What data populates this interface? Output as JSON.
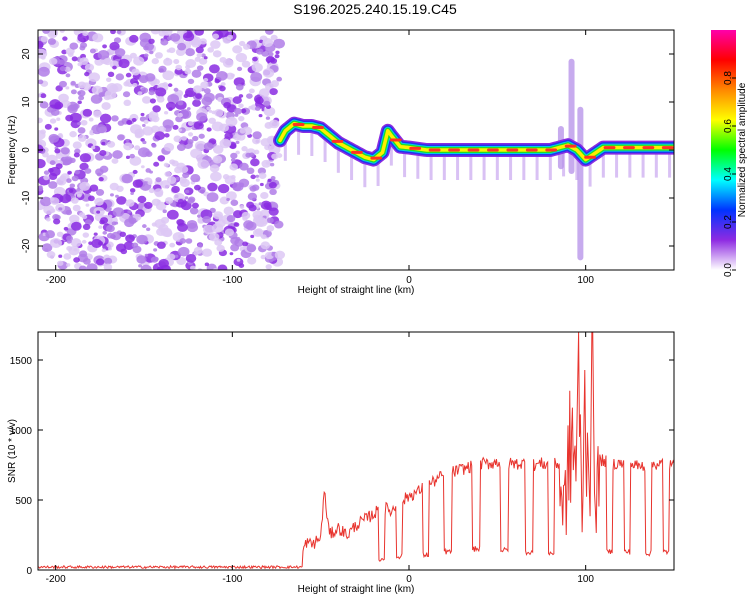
{
  "page": {
    "title": "S196.2025.240.15.19.C45"
  },
  "chart_data": [
    {
      "type": "heatmap",
      "title": "S196.2025.240.15.19.C45",
      "xlabel": "Height of straight line (km)",
      "ylabel": "Frequency (Hz)",
      "xlim": [
        -210,
        150
      ],
      "ylim": [
        -25,
        25
      ],
      "xticks": [
        -200,
        -100,
        0,
        100
      ],
      "yticks": [
        -20,
        -10,
        0,
        10,
        20
      ],
      "noise_region_x": [
        -210,
        -73
      ],
      "ridge": {
        "x": [
          -73,
          -70,
          -65,
          -60,
          -55,
          -50,
          -45,
          -40,
          -35,
          -30,
          -25,
          -20,
          -15,
          -12,
          -10,
          -5,
          0,
          10,
          20,
          30,
          40,
          50,
          60,
          70,
          80,
          85,
          90,
          95,
          100,
          110,
          120,
          130,
          140,
          150
        ],
        "freq": [
          2,
          4,
          5.5,
          5,
          5,
          4.5,
          3,
          1.5,
          0.5,
          -0.5,
          -1.5,
          -2,
          -0.5,
          4,
          3,
          0.7,
          0.5,
          0,
          0,
          0,
          0,
          0,
          0,
          0,
          0,
          0.5,
          1,
          0,
          -2,
          0.5,
          0.5,
          0.5,
          0.5,
          0.5
        ]
      },
      "spikes": [
        {
          "x": 92,
          "freq_range": [
            -5,
            19
          ]
        },
        {
          "x": 97,
          "freq_range": [
            -23,
            9
          ]
        },
        {
          "x": 86,
          "freq_range": [
            -4,
            5
          ]
        }
      ],
      "colorbar": {
        "label": "Normalized spectral amplitude",
        "range": [
          0,
          1
        ],
        "ticks": [
          "0.0",
          "0.2",
          "0.4",
          "0.6",
          "0.8"
        ],
        "tick_values": [
          0,
          0.2,
          0.4,
          0.6,
          0.8
        ],
        "colors": [
          "#ffffff",
          "#8e2be2",
          "#0033ff",
          "#00ffff",
          "#00ff00",
          "#ffff00",
          "#ff8800",
          "#ff0000",
          "#ff00aa"
        ]
      }
    },
    {
      "type": "line",
      "xlabel": "Height of straight line (km)",
      "ylabel": "SNR (10 * v/v)",
      "xlim": [
        -210,
        150
      ],
      "ylim": [
        0,
        1700
      ],
      "xticks": [
        -200,
        -100,
        0,
        100
      ],
      "yticks": [
        0,
        500,
        1000,
        1500
      ],
      "color": "#e8342e",
      "series": [
        {
          "name": "SNR",
          "x": [
            -210,
            -75,
            -62,
            -58,
            -55,
            -50,
            -48,
            -45,
            -40,
            -35,
            -30,
            -25,
            -20,
            -15,
            -10,
            -5,
            0,
            5,
            10,
            15,
            20,
            25,
            30,
            35,
            40,
            45,
            50,
            55,
            60,
            65,
            70,
            75,
            80,
            85,
            88,
            90,
            92,
            94,
            96,
            98,
            100,
            102,
            104,
            106,
            110,
            115,
            120,
            125,
            130,
            135,
            140,
            145,
            150
          ],
          "y": [
            20,
            20,
            70,
            200,
            180,
            230,
            560,
            250,
            300,
            250,
            320,
            360,
            400,
            450,
            420,
            480,
            530,
            560,
            600,
            640,
            680,
            700,
            720,
            740,
            760,
            760,
            770,
            760,
            760,
            760,
            750,
            760,
            750,
            760,
            600,
            900,
            1300,
            1000,
            1600,
            600,
            1700,
            1000,
            1650,
            800,
            780,
            760,
            760,
            760,
            740,
            750,
            760,
            760,
            740
          ]
        }
      ],
      "dropouts": [
        {
          "x": [
            -17,
            -14
          ],
          "y": 80
        },
        {
          "x": [
            -7,
            -4
          ],
          "y": 100
        },
        {
          "x": [
            8,
            11
          ],
          "y": 110
        },
        {
          "x": [
            20,
            24
          ],
          "y": 130
        },
        {
          "x": [
            36,
            40
          ],
          "y": 150
        },
        {
          "x": [
            52,
            56
          ],
          "y": 140
        },
        {
          "x": [
            66,
            70
          ],
          "y": 130
        },
        {
          "x": [
            79,
            82
          ],
          "y": 120
        },
        {
          "x": [
            112,
            115
          ],
          "y": 130
        },
        {
          "x": [
            122,
            125
          ],
          "y": 130
        },
        {
          "x": [
            134,
            137
          ],
          "y": 120
        },
        {
          "x": [
            144,
            147
          ],
          "y": 130
        }
      ]
    }
  ]
}
